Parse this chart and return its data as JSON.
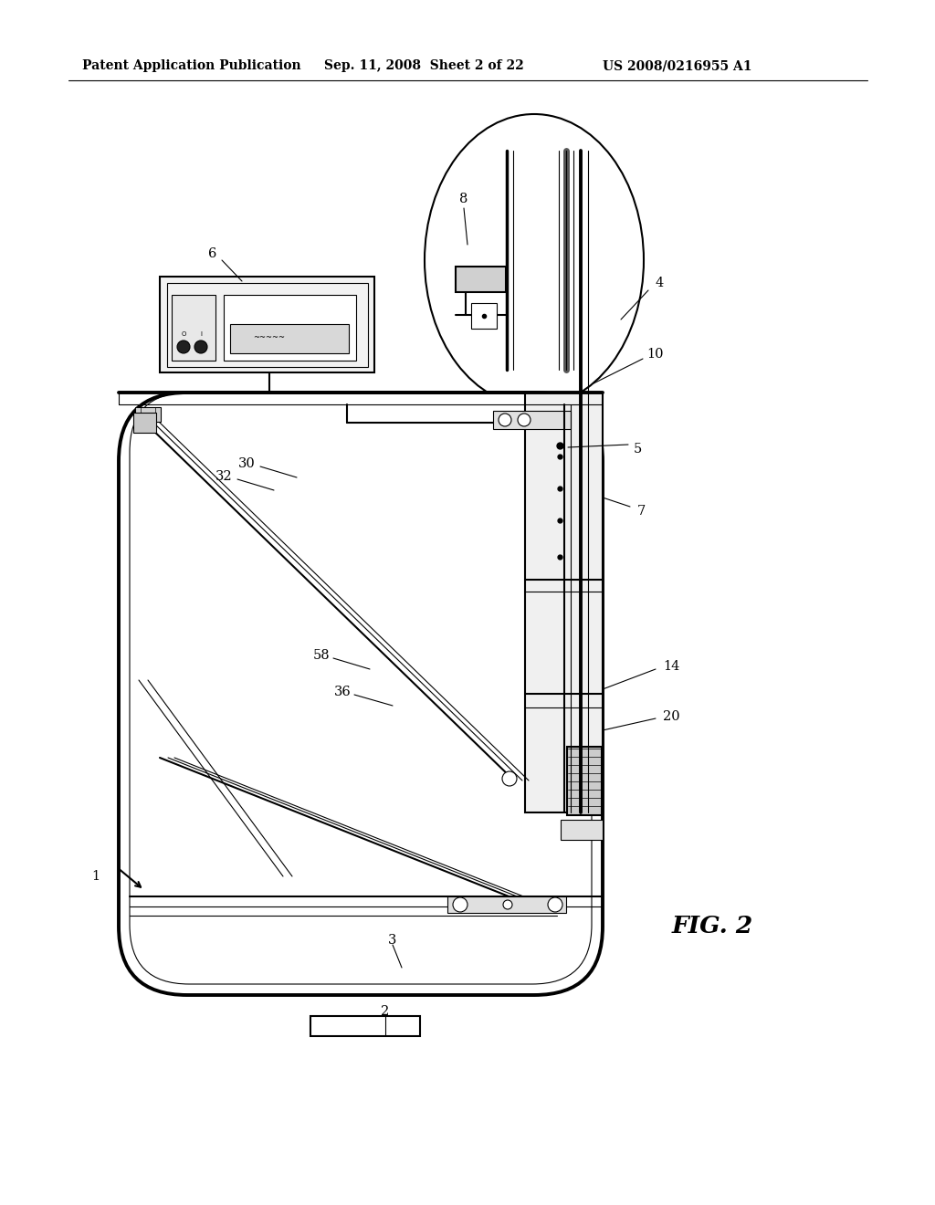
{
  "bg_color": "#ffffff",
  "line_color": "#000000",
  "header_left": "Patent Application Publication",
  "header_mid": "Sep. 11, 2008  Sheet 2 of 22",
  "header_right": "US 2008/0216955 A1",
  "fig_label": "FIG. 2",
  "lw_thin": 0.8,
  "lw_med": 1.5,
  "lw_thick": 2.8,
  "label_fs": 11,
  "header_fs": 10
}
